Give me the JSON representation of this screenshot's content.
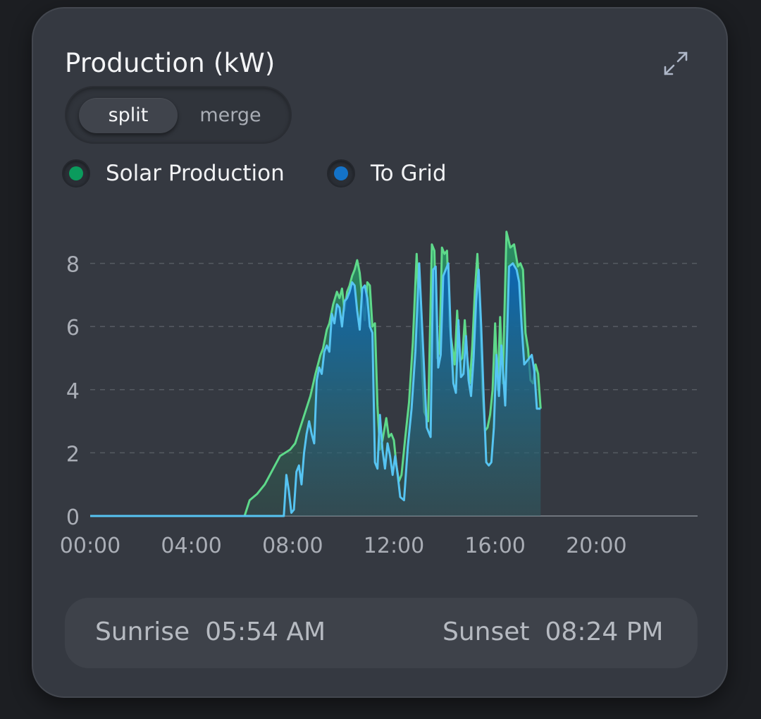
{
  "header": {
    "title": "Production (kW)",
    "expand_icon": "expand-arrows-icon"
  },
  "mode_toggle": {
    "options": [
      "split",
      "merge"
    ],
    "selected": "split"
  },
  "legend": [
    {
      "label": "Solar Production",
      "color": "#0b9b5d"
    },
    {
      "label": "To Grid",
      "color": "#1473c8"
    }
  ],
  "sun_times": {
    "sunrise_label": "Sunrise",
    "sunrise_value": "05:54 AM",
    "sunset_label": "Sunset",
    "sunset_value": "08:24 PM"
  },
  "chart_data": {
    "type": "area",
    "xlabel": "",
    "ylabel": "",
    "x_unit": "hours",
    "xlim": [
      0,
      24
    ],
    "ylim": [
      0,
      9
    ],
    "x_ticks": [
      {
        "value": 0,
        "label": "00:00"
      },
      {
        "value": 4,
        "label": "04:00"
      },
      {
        "value": 8,
        "label": "08:00"
      },
      {
        "value": 12,
        "label": "12:00"
      },
      {
        "value": 16,
        "label": "16:00"
      },
      {
        "value": 20,
        "label": "20:00"
      }
    ],
    "y_ticks": [
      0,
      2,
      4,
      6,
      8
    ],
    "grid": "horizontal dashed",
    "series": [
      {
        "name": "Solar Production",
        "line_color": "#5ed98a",
        "x": [
          0,
          6.1,
          6.3,
          6.6,
          6.9,
          7.1,
          7.3,
          7.5,
          7.7,
          7.9,
          8.1,
          8.3,
          8.5,
          8.7,
          8.9,
          9.1,
          9.2,
          9.35,
          9.45,
          9.6,
          9.75,
          9.85,
          9.95,
          10.05,
          10.15,
          10.25,
          10.35,
          10.45,
          10.55,
          10.65,
          10.75,
          10.85,
          10.95,
          11.05,
          11.15,
          11.25,
          11.35,
          11.45,
          11.55,
          11.7,
          11.8,
          11.9,
          12.0,
          12.1,
          12.2,
          12.3,
          12.45,
          12.6,
          12.75,
          12.9,
          13.05,
          13.2,
          13.35,
          13.5,
          13.6,
          13.7,
          13.8,
          13.9,
          14.0,
          14.1,
          14.2,
          14.3,
          14.4,
          14.5,
          14.6,
          14.7,
          14.8,
          14.9,
          15.0,
          15.1,
          15.2,
          15.3,
          15.4,
          15.5,
          15.6,
          15.7,
          15.8,
          15.9,
          16.0,
          16.1,
          16.2,
          16.3,
          16.45,
          16.6,
          16.75,
          16.9,
          17.0,
          17.1,
          17.2,
          17.3,
          17.4,
          17.5,
          17.6,
          17.7,
          17.8
        ],
        "values": [
          0,
          0,
          0.5,
          0.7,
          1.0,
          1.3,
          1.6,
          1.9,
          2.0,
          2.1,
          2.3,
          2.8,
          3.3,
          3.8,
          4.5,
          5.1,
          5.3,
          5.9,
          6.1,
          6.7,
          7.1,
          6.9,
          7.2,
          6.5,
          7.1,
          7.3,
          7.6,
          7.8,
          8.1,
          7.7,
          6.9,
          6.2,
          7.4,
          7.3,
          6.0,
          6.1,
          3.5,
          2.1,
          2.4,
          3.1,
          2.5,
          2.6,
          2.4,
          1.6,
          1.1,
          1.3,
          2.5,
          3.6,
          5.5,
          8.3,
          5.7,
          3.3,
          3.0,
          8.6,
          8.4,
          5.0,
          5.2,
          8.5,
          8.3,
          8.4,
          6.0,
          5.4,
          4.8,
          6.5,
          4.9,
          5.0,
          6.2,
          5.0,
          4.2,
          5.4,
          7.1,
          8.3,
          6.5,
          4.0,
          2.7,
          2.8,
          3.2,
          4.0,
          6.1,
          4.0,
          6.3,
          4.2,
          9.0,
          8.5,
          8.6,
          7.9,
          8.0,
          7.8,
          5.8,
          5.3,
          4.3,
          4.2,
          4.8,
          4.5,
          3.4
        ],
        "note_end_x": 17.8
      },
      {
        "name": "To Grid",
        "line_color": "#56c4f2",
        "x": [
          0,
          7.65,
          7.75,
          7.85,
          7.95,
          8.05,
          8.15,
          8.25,
          8.35,
          8.45,
          8.55,
          8.65,
          8.75,
          8.85,
          8.95,
          9.05,
          9.15,
          9.25,
          9.35,
          9.45,
          9.55,
          9.65,
          9.75,
          9.85,
          9.95,
          10.05,
          10.15,
          10.25,
          10.35,
          10.45,
          10.55,
          10.65,
          10.75,
          10.85,
          10.95,
          11.05,
          11.15,
          11.25,
          11.35,
          11.45,
          11.55,
          11.65,
          11.75,
          11.85,
          11.95,
          12.05,
          12.15,
          12.25,
          12.4,
          12.55,
          12.7,
          12.85,
          13.0,
          13.15,
          13.3,
          13.45,
          13.55,
          13.65,
          13.75,
          13.85,
          13.95,
          14.05,
          14.15,
          14.25,
          14.35,
          14.45,
          14.55,
          14.65,
          14.75,
          14.85,
          14.95,
          15.05,
          15.15,
          15.25,
          15.35,
          15.45,
          15.55,
          15.65,
          15.75,
          15.85,
          15.95,
          16.05,
          16.15,
          16.25,
          16.4,
          16.55,
          16.7,
          16.85,
          16.95,
          17.05,
          17.15,
          17.25,
          17.35,
          17.45,
          17.55,
          17.65,
          17.8
        ],
        "values": [
          0,
          0,
          1.3,
          0.8,
          0.1,
          0.2,
          1.4,
          1.6,
          1.0,
          2.0,
          2.6,
          3.0,
          2.6,
          2.3,
          4.3,
          4.7,
          4.5,
          5.2,
          5.4,
          5.2,
          6.4,
          6.1,
          6.7,
          6.6,
          6.0,
          6.8,
          6.9,
          7.1,
          7.4,
          7.3,
          6.5,
          5.9,
          7.2,
          7.3,
          6.9,
          6.0,
          5.8,
          1.7,
          1.5,
          3.2,
          2.1,
          1.5,
          2.3,
          1.9,
          1.3,
          1.9,
          1.3,
          0.6,
          0.5,
          2.2,
          3.4,
          5.2,
          8.0,
          5.4,
          2.8,
          2.5,
          7.8,
          7.9,
          4.7,
          5.1,
          7.6,
          7.8,
          8.0,
          5.7,
          4.2,
          3.9,
          6.2,
          4.4,
          4.5,
          5.7,
          4.3,
          3.8,
          5.0,
          6.8,
          7.8,
          6.0,
          3.7,
          1.7,
          1.6,
          1.7,
          2.8,
          5.1,
          3.8,
          5.4,
          3.5,
          7.9,
          8.0,
          7.8,
          7.4,
          6.0,
          4.8,
          4.9,
          5.0,
          5.1,
          4.6,
          3.4,
          3.4
        ]
      }
    ]
  }
}
